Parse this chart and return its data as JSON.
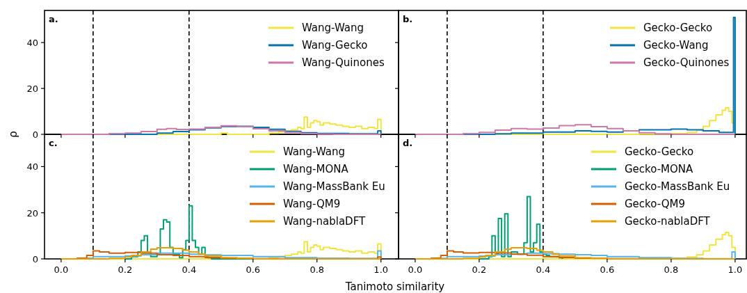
{
  "chart_data": [
    {
      "type": "step",
      "annotations": [
        "a."
      ],
      "xlim": [
        -0.052,
        1.055
      ],
      "ylim": [
        0,
        54
      ],
      "yticks": [
        0,
        20,
        40
      ],
      "xticks": [
        0,
        0.2,
        0.4,
        0.6,
        0.8,
        1
      ],
      "tick_labels": "y",
      "legend": "top right",
      "ref_lines": [
        {
          "axis": "x",
          "value": 0.1,
          "color": "#000000",
          "line_style": "dashed"
        },
        {
          "axis": "x",
          "value": 0.4,
          "color": "#000000",
          "line_style": "dashed"
        }
      ],
      "series": [
        {
          "name": "Wang-Wang",
          "color": "#f0e442",
          "x": [
            0,
            0.5,
            0.52,
            0.65,
            0.68,
            0.7,
            0.72,
            0.74,
            0.75,
            0.76,
            0.77,
            0.78,
            0.79,
            0.8,
            0.81,
            0.82,
            0.84,
            0.86,
            0.88,
            0.9,
            0.92,
            0.94,
            0.96,
            0.98,
            0.99,
            1.0
          ],
          "values": [
            0,
            0.5,
            0,
            0.5,
            1,
            1.5,
            2,
            3,
            2.5,
            7.5,
            3,
            5,
            6,
            5.5,
            4,
            5,
            4.5,
            4,
            3.5,
            3,
            3.5,
            2.5,
            3,
            2.5,
            6.5,
            0
          ]
        },
        {
          "name": "Wang-Gecko",
          "color": "#0072b2",
          "x": [
            0,
            0.3,
            0.35,
            0.4,
            0.45,
            0.5,
            0.55,
            0.6,
            0.65,
            0.7,
            0.75,
            0.8,
            0.9,
            0.99,
            1.0
          ],
          "values": [
            0,
            0.5,
            1.2,
            2,
            2.8,
            3.4,
            3.5,
            3,
            2.2,
            1.3,
            0.7,
            0.4,
            0.2,
            1.5,
            0
          ]
        },
        {
          "name": "Wang-Quinones",
          "color": "#cc79a7",
          "x": [
            0,
            0.15,
            0.2,
            0.25,
            0.3,
            0.33,
            0.36,
            0.4,
            0.45,
            0.5,
            0.55,
            0.6,
            0.65,
            0.7,
            0.75,
            0.8,
            0.85,
            1.0
          ],
          "values": [
            0,
            0.3,
            0.5,
            1.2,
            2.2,
            2.5,
            2.1,
            2.3,
            3,
            3.7,
            3.3,
            2.4,
            1.5,
            0.8,
            0.3,
            0.1,
            0,
            0
          ]
        }
      ]
    },
    {
      "type": "step",
      "annotations": [
        "b."
      ],
      "xlim": [
        -0.052,
        1.035
      ],
      "ylim": [
        0,
        54
      ],
      "yticks": [
        0,
        20,
        40
      ],
      "xticks": [
        0,
        0.2,
        0.4,
        0.6,
        0.8,
        1
      ],
      "tick_labels": false,
      "legend": "top right",
      "ref_lines": [
        {
          "axis": "x",
          "value": 0.1,
          "color": "#000000",
          "line_style": "dashed"
        },
        {
          "axis": "x",
          "value": 0.4,
          "color": "#000000",
          "line_style": "dashed"
        }
      ],
      "series": [
        {
          "name": "Gecko-Gecko",
          "color": "#f0e442",
          "x": [
            0,
            0.7,
            0.8,
            0.85,
            0.88,
            0.9,
            0.92,
            0.94,
            0.96,
            0.97,
            0.98,
            0.99,
            1.0
          ],
          "values": [
            0,
            0.1,
            0.3,
            0.8,
            1.8,
            3.5,
            6,
            8.5,
            10.5,
            11.5,
            10,
            5,
            0
          ]
        },
        {
          "name": "Gecko-Wang",
          "color": "#0072b2",
          "x": [
            0,
            0.25,
            0.3,
            0.4,
            0.5,
            0.55,
            0.6,
            0.65,
            0.7,
            0.75,
            0.8,
            0.85,
            0.9,
            0.95,
            0.995,
            1.0
          ],
          "values": [
            0,
            0.2,
            0.5,
            1,
            1.5,
            1.3,
            1,
            1.5,
            2,
            2,
            2.3,
            2,
            1.5,
            0.8,
            51,
            0
          ]
        },
        {
          "name": "Gecko-Quinones",
          "color": "#cc79a7",
          "x": [
            0,
            0.15,
            0.2,
            0.25,
            0.3,
            0.35,
            0.4,
            0.45,
            0.5,
            0.55,
            0.6,
            0.65,
            0.7,
            0.75,
            0.8,
            1.0
          ],
          "values": [
            0,
            0.3,
            0.8,
            1.8,
            2.5,
            2.3,
            2.7,
            3.8,
            4.2,
            3.3,
            2.5,
            1.5,
            0.7,
            0.2,
            0,
            0
          ]
        }
      ]
    },
    {
      "type": "step",
      "annotations": [
        "c."
      ],
      "xlabel": "Tanimoto similarity",
      "ylabel": "ρ",
      "xlim": [
        -0.052,
        1.055
      ],
      "ylim": [
        0,
        54
      ],
      "yticks": [
        0,
        20,
        40
      ],
      "xticks": [
        {
          "value": 0,
          "label": "0.0"
        },
        {
          "value": 0.2,
          "label": "0.2"
        },
        {
          "value": 0.4,
          "label": "0.4"
        },
        {
          "value": 0.6,
          "label": "0.6"
        },
        {
          "value": 0.8,
          "label": "0.8"
        },
        {
          "value": 1,
          "label": "1.0"
        }
      ],
      "legend": "top right",
      "ref_lines": [
        {
          "axis": "x",
          "value": 0.1,
          "color": "#000000",
          "line_style": "dashed"
        },
        {
          "axis": "x",
          "value": 0.4,
          "color": "#000000",
          "line_style": "dashed"
        }
      ],
      "series": [
        {
          "name": "Wang-Wang",
          "color": "#f0e442",
          "x": [
            0,
            0.5,
            0.52,
            0.65,
            0.68,
            0.7,
            0.72,
            0.74,
            0.75,
            0.76,
            0.77,
            0.78,
            0.79,
            0.8,
            0.81,
            0.82,
            0.84,
            0.86,
            0.88,
            0.9,
            0.92,
            0.94,
            0.96,
            0.98,
            0.99,
            1.0
          ],
          "values": [
            0,
            0.5,
            0,
            0.5,
            1,
            1.5,
            2,
            3,
            2.5,
            7.5,
            3,
            5,
            6,
            5.5,
            4,
            5,
            4.5,
            4,
            3.5,
            3,
            3.5,
            2.5,
            3,
            2.5,
            6.5,
            0
          ]
        },
        {
          "name": "Wang-MONA",
          "color": "#009e73",
          "x": [
            0.2,
            0.22,
            0.24,
            0.25,
            0.26,
            0.27,
            0.28,
            0.3,
            0.31,
            0.32,
            0.33,
            0.34,
            0.35,
            0.37,
            0.38,
            0.39,
            0.4,
            0.41,
            0.42,
            0.43,
            0.44,
            0.45,
            0.46,
            0.47,
            1.0
          ],
          "values": [
            0,
            1,
            3,
            8,
            10,
            3,
            1,
            2,
            13,
            17,
            16,
            5,
            2,
            0.5,
            4,
            8,
            23,
            8,
            5,
            2,
            5,
            1,
            0.5,
            0,
            0
          ]
        },
        {
          "name": "Wang-MassBank Eu",
          "color": "#56b4e9",
          "x": [
            0,
            0.08,
            0.1,
            0.15,
            0.2,
            0.25,
            0.3,
            0.35,
            0.4,
            0.45,
            0.5,
            0.6,
            0.7,
            0.8,
            0.9,
            0.99,
            1.0
          ],
          "values": [
            0,
            0.3,
            1,
            1,
            1.3,
            1.8,
            2.5,
            2.5,
            2,
            1.7,
            1.5,
            1,
            0.5,
            0.3,
            0.2,
            3.5,
            0
          ]
        },
        {
          "name": "Wang-QM9",
          "color": "#d55e00",
          "x": [
            0,
            0.05,
            0.08,
            0.1,
            0.12,
            0.15,
            0.2,
            0.25,
            0.3,
            0.35,
            0.4,
            0.45,
            0.5,
            0.6,
            0.7,
            0.99,
            1.0
          ],
          "values": [
            0,
            0.3,
            1.5,
            3.5,
            3,
            2.5,
            2.8,
            2.5,
            1.8,
            1.5,
            1,
            0.6,
            0.3,
            0.1,
            0,
            0.8,
            0
          ]
        },
        {
          "name": "Wang-nablaDFT",
          "color": "#e69f00",
          "x": [
            0,
            0.15,
            0.2,
            0.22,
            0.25,
            0.28,
            0.3,
            0.33,
            0.35,
            0.38,
            0.4,
            0.43,
            0.45,
            0.5,
            0.55,
            0.6,
            1.0
          ],
          "values": [
            0,
            0.2,
            0.8,
            1.5,
            3,
            4.2,
            4.8,
            4.8,
            4.5,
            3.8,
            3,
            2,
            1.3,
            0.5,
            0.2,
            0,
            0
          ]
        }
      ]
    },
    {
      "type": "step",
      "annotations": [
        "d."
      ],
      "xlim": [
        -0.052,
        1.035
      ],
      "ylim": [
        0,
        54
      ],
      "yticks": [
        0,
        20,
        40
      ],
      "xticks": [
        {
          "value": 0,
          "label": "0.0"
        },
        {
          "value": 0.2,
          "label": "0.2"
        },
        {
          "value": 0.4,
          "label": "0.4"
        },
        {
          "value": 0.6,
          "label": "0.6"
        },
        {
          "value": 0.8,
          "label": "0.8"
        },
        {
          "value": 1,
          "label": "1.0"
        }
      ],
      "tick_labels": "x",
      "legend": "top right",
      "ref_lines": [
        {
          "axis": "x",
          "value": 0.1,
          "color": "#000000",
          "line_style": "dashed"
        },
        {
          "axis": "x",
          "value": 0.4,
          "color": "#000000",
          "line_style": "dashed"
        }
      ],
      "series": [
        {
          "name": "Gecko-Gecko",
          "color": "#f0e442",
          "x": [
            0,
            0.7,
            0.8,
            0.85,
            0.88,
            0.9,
            0.92,
            0.94,
            0.96,
            0.97,
            0.98,
            0.99,
            1.0
          ],
          "values": [
            0,
            0.1,
            0.3,
            0.8,
            1.8,
            3.5,
            6,
            8.5,
            10.5,
            11.5,
            10,
            5,
            0
          ]
        },
        {
          "name": "Gecko-MONA",
          "color": "#009e73",
          "x": [
            0.2,
            0.23,
            0.24,
            0.25,
            0.26,
            0.27,
            0.28,
            0.29,
            0.3,
            0.32,
            0.34,
            0.35,
            0.36,
            0.37,
            0.38,
            0.39,
            0.4,
            0.41,
            0.42,
            0.45,
            0.46
          ],
          "values": [
            0,
            1,
            10,
            2,
            17.5,
            1,
            19.5,
            1,
            3,
            2,
            7,
            27,
            3,
            7,
            15,
            3,
            2,
            1.5,
            1,
            0.5,
            0
          ]
        },
        {
          "name": "Gecko-MassBank Eu",
          "color": "#56b4e9",
          "x": [
            0,
            0.05,
            0.1,
            0.15,
            0.2,
            0.25,
            0.3,
            0.35,
            0.4,
            0.45,
            0.5,
            0.55,
            0.6,
            0.7,
            0.8,
            0.9,
            0.99,
            1.0
          ],
          "values": [
            0,
            0.2,
            1,
            1,
            1.2,
            1.8,
            2.2,
            2.5,
            2.3,
            2,
            1.8,
            1.5,
            1,
            0.5,
            0.2,
            0.1,
            3,
            0
          ]
        },
        {
          "name": "Gecko-QM9",
          "color": "#d55e00",
          "x": [
            0,
            0.05,
            0.08,
            0.1,
            0.12,
            0.15,
            0.2,
            0.25,
            0.3,
            0.35,
            0.4,
            0.45,
            0.5,
            0.6,
            0.7,
            1.0
          ],
          "values": [
            0,
            0.3,
            1.5,
            3.5,
            3,
            2.6,
            2.8,
            2.6,
            2,
            1.6,
            1,
            0.6,
            0.3,
            0.1,
            0,
            0
          ]
        },
        {
          "name": "Gecko-nablaDFT",
          "color": "#e69f00",
          "x": [
            0,
            0.15,
            0.2,
            0.22,
            0.25,
            0.28,
            0.3,
            0.33,
            0.35,
            0.38,
            0.4,
            0.43,
            0.45,
            0.5,
            0.55,
            0.6,
            1.0
          ],
          "values": [
            0,
            0.2,
            0.8,
            1.5,
            3,
            4.2,
            4.8,
            4.8,
            4.5,
            3.8,
            3,
            2,
            1.3,
            0.5,
            0.2,
            0,
            0
          ]
        }
      ]
    }
  ]
}
